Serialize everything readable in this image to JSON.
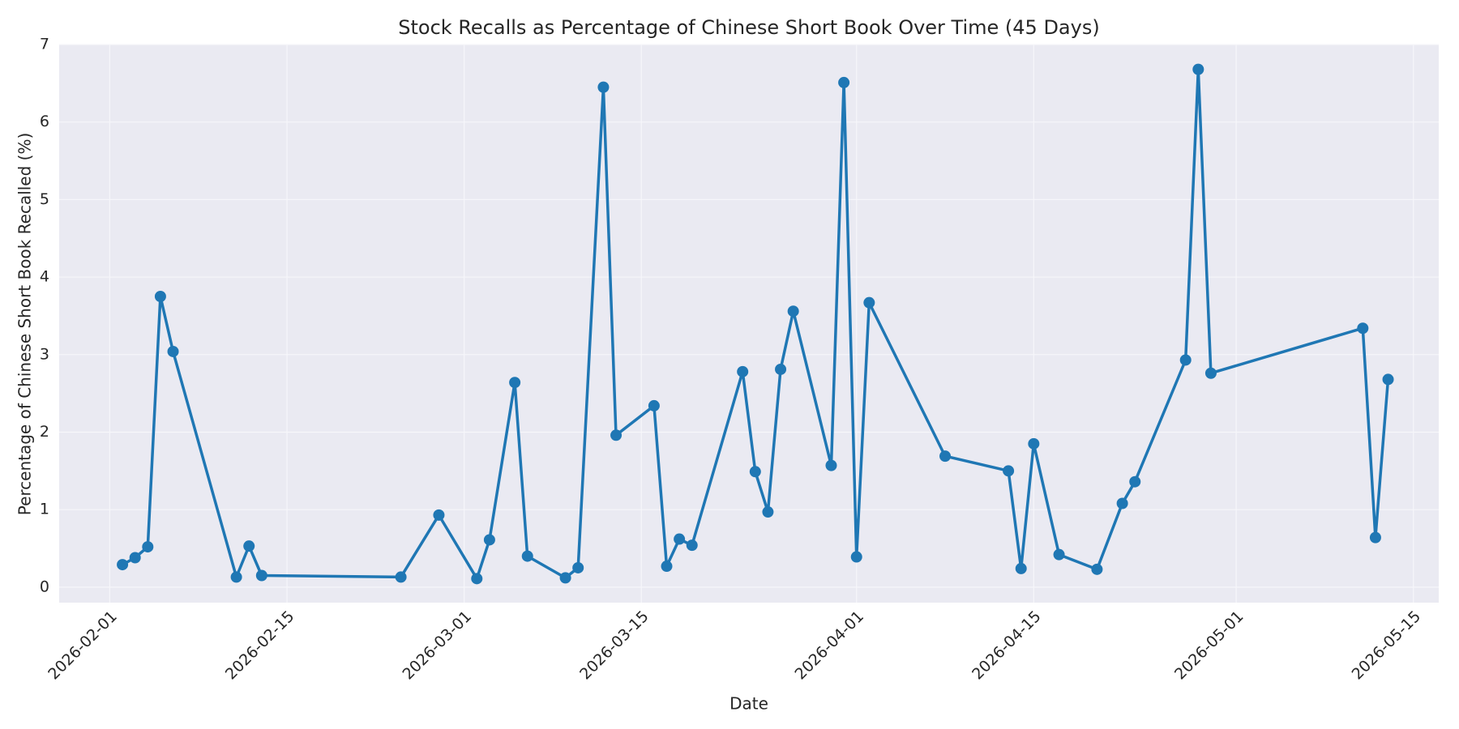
{
  "chart_data": {
    "type": "line",
    "title": "Stock Recalls as Percentage of Chinese Short Book Over Time (45 Days)",
    "x_label": "Date",
    "y_label": "Percentage of Chinese Short Book Recalled (%)",
    "x": [
      "2026-02-02",
      "2026-02-03",
      "2026-02-04",
      "2026-02-05",
      "2026-02-06",
      "2026-02-11",
      "2026-02-12",
      "2026-02-13",
      "2026-02-24",
      "2026-02-27",
      "2026-03-02",
      "2026-03-03",
      "2026-03-05",
      "2026-03-06",
      "2026-03-09",
      "2026-03-10",
      "2026-03-12",
      "2026-03-13",
      "2026-03-16",
      "2026-03-17",
      "2026-03-18",
      "2026-03-19",
      "2026-03-23",
      "2026-03-24",
      "2026-03-25",
      "2026-03-26",
      "2026-03-27",
      "2026-03-30",
      "2026-03-31",
      "2026-04-01",
      "2026-04-02",
      "2026-04-08",
      "2026-04-13",
      "2026-04-14",
      "2026-04-15",
      "2026-04-17",
      "2026-04-20",
      "2026-04-22",
      "2026-04-23",
      "2026-04-27",
      "2026-04-28",
      "2026-04-29",
      "2026-05-11",
      "2026-05-12",
      "2026-05-13"
    ],
    "values": [
      0.29,
      0.38,
      0.52,
      3.75,
      3.04,
      0.13,
      0.53,
      0.15,
      0.13,
      0.93,
      0.11,
      0.61,
      2.64,
      0.4,
      0.12,
      0.25,
      6.45,
      1.96,
      2.34,
      0.27,
      0.62,
      0.54,
      2.78,
      1.49,
      0.97,
      2.81,
      3.56,
      1.57,
      6.51,
      0.39,
      3.67,
      1.69,
      1.5,
      0.24,
      1.85,
      0.42,
      0.23,
      1.08,
      1.36,
      2.93,
      6.68,
      2.76,
      3.34,
      0.64,
      2.68
    ],
    "color": "#1f77b4",
    "xlim": [
      "2026-01-28",
      "2026-05-17"
    ],
    "xticks": [
      "2026-02-01",
      "2026-02-15",
      "2026-03-01",
      "2026-03-15",
      "2026-04-01",
      "2026-04-15",
      "2026-05-01",
      "2026-05-15"
    ],
    "ylim": [
      -0.2,
      7
    ],
    "yticks": [
      0,
      1,
      2,
      3,
      4,
      5,
      6,
      7
    ],
    "grid": true
  }
}
